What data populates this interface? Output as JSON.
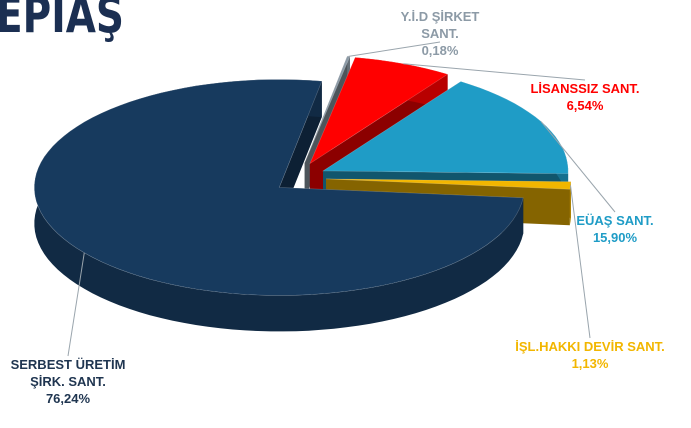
{
  "chart_data": {
    "type": "pie",
    "title": "EPIAŞ",
    "categories": [
      "Y.İ.D ŞİRKET SANT.",
      "LİSANSSIZ SANT.",
      "EÜAŞ SANT.",
      "İŞL.HAKKI DEVİR SANT.",
      "SERBEST ÜRETİM ŞİRK. SANT."
    ],
    "values": [
      0.18,
      6.54,
      15.9,
      1.13,
      76.24
    ],
    "value_labels": [
      "0,18%",
      "6,54%",
      "15,90%",
      "1,13%",
      "76,24%"
    ],
    "colors": [
      "#8c9aa6",
      "#ff0000",
      "#1f9cc6",
      "#f2b600",
      "#173a5e"
    ],
    "label_colors": [
      "#8c9aa6",
      "#ff0000",
      "#1f9cc6",
      "#f2b600",
      "#1f3550"
    ]
  }
}
